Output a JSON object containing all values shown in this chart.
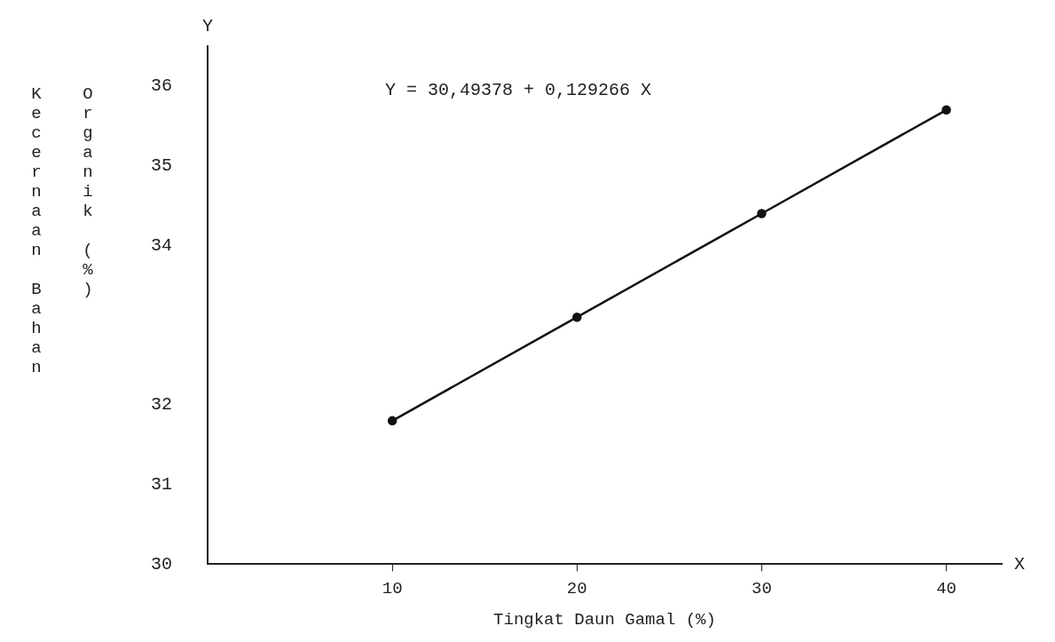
{
  "chart_data": {
    "type": "line",
    "xlabel": "Tingkat Daun Gamal (%)",
    "ylabel": "Kecernaan Bahan Organik (%)",
    "annotations": [
      "Y = 30,49378 + 0,129266 X",
      "Y",
      "X"
    ],
    "series": [
      {
        "type": "line",
        "color": "#111111",
        "x": [
          10,
          20,
          30,
          40
        ],
        "values": [
          31.8,
          33.1,
          34.4,
          35.7
        ]
      }
    ],
    "xlim": [
      0,
      43
    ],
    "xticks": [
      10,
      20,
      30,
      40
    ],
    "ylim": [
      30,
      36.5
    ],
    "yticks": [
      30,
      31,
      32,
      34,
      35,
      36
    ],
    "grid": false,
    "legend": false,
    "marker": "circle",
    "line_style": "solid"
  }
}
